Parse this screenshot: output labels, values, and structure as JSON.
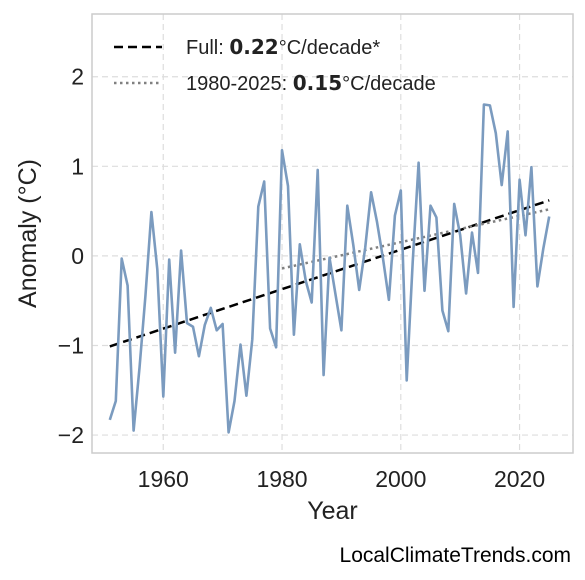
{
  "chart_data": {
    "type": "line",
    "title": "",
    "xlabel": "Year",
    "ylabel": "Anomaly (°C)",
    "xlim": [
      1948,
      2029
    ],
    "ylim": [
      -2.2,
      2.7
    ],
    "xticks": [
      1960,
      1980,
      2000,
      2020
    ],
    "yticks": [
      -2,
      -1,
      0,
      1,
      2
    ],
    "ytick_labels": [
      "−2",
      "−1",
      "0",
      "1",
      "2"
    ],
    "grid": true,
    "legend_position": "top-left",
    "series": [
      {
        "name": "",
        "color": "#7b9bbf",
        "style": "solid",
        "x": [
          1951,
          1952,
          1953,
          1954,
          1955,
          1956,
          1957,
          1958,
          1959,
          1960,
          1961,
          1962,
          1963,
          1964,
          1965,
          1966,
          1967,
          1968,
          1969,
          1970,
          1971,
          1972,
          1973,
          1974,
          1975,
          1976,
          1977,
          1978,
          1979,
          1980,
          1981,
          1982,
          1983,
          1984,
          1985,
          1986,
          1987,
          1988,
          1989,
          1990,
          1991,
          1992,
          1993,
          1994,
          1995,
          1996,
          1997,
          1998,
          1999,
          2000,
          2001,
          2002,
          2003,
          2004,
          2005,
          2006,
          2007,
          2008,
          2009,
          2010,
          2011,
          2012,
          2013,
          2014,
          2015,
          2016,
          2017,
          2018,
          2019,
          2020,
          2021,
          2022,
          2023,
          2024,
          2025
        ],
        "y": [
          -1.83,
          -1.62,
          -0.03,
          -0.33,
          -1.95,
          -1.25,
          -0.45,
          0.49,
          -0.15,
          -1.57,
          -0.04,
          -1.08,
          0.06,
          -0.75,
          -0.79,
          -1.12,
          -0.77,
          -0.58,
          -0.83,
          -0.76,
          -1.97,
          -1.62,
          -0.99,
          -1.56,
          -0.93,
          0.55,
          0.83,
          -0.81,
          -1.02,
          1.18,
          0.78,
          -0.88,
          0.13,
          -0.28,
          -0.52,
          0.96,
          -1.33,
          -0.02,
          -0.43,
          -0.83,
          0.56,
          0.12,
          -0.38,
          0.09,
          0.71,
          0.38,
          -0.03,
          -0.49,
          0.45,
          0.73,
          -1.39,
          -0.07,
          1.04,
          -0.39,
          0.56,
          0.43,
          -0.61,
          -0.84,
          0.58,
          0.23,
          -0.42,
          0.26,
          -0.19,
          1.69,
          1.68,
          1.37,
          0.79,
          1.39,
          -0.57,
          0.85,
          0.23,
          0.99,
          -0.34,
          0.08,
          0.44
        ]
      }
    ],
    "trends": [
      {
        "label_prefix": "Full: ",
        "label_value": "0.22",
        "label_suffix": "°C/decade*",
        "color": "#000000",
        "style": "dashed",
        "x": [
          1951,
          2025
        ],
        "y": [
          -1.01,
          0.62
        ]
      },
      {
        "label_prefix": "1980-2025: ",
        "label_value": "0.15",
        "label_suffix": "°C/decade",
        "color": "#808080",
        "style": "dotted",
        "x": [
          1980,
          2025
        ],
        "y": [
          -0.14,
          0.52
        ]
      }
    ]
  },
  "footer": {
    "watermark": "LocalClimateTrends.com"
  }
}
